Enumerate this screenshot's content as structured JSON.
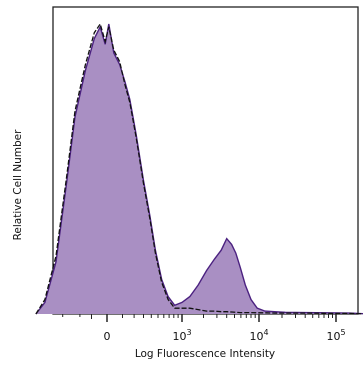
{
  "chart_data": {
    "type": "area",
    "title": "",
    "xlabel": "Log Fluorescence Intensity",
    "ylabel": "Relative Cell Number",
    "x_scale": "logicle",
    "tick_labels": [
      {
        "base": "0",
        "exp": ""
      },
      {
        "base": "10",
        "exp": "3"
      },
      {
        "base": "10",
        "exp": "4"
      },
      {
        "base": "10",
        "exp": "5"
      }
    ],
    "grid": false,
    "legend": "none",
    "colors": {
      "fill": "#a98fc3",
      "outline_unstained": "#111111",
      "outline_stained": "#4b2180",
      "axis": "#222222"
    },
    "series": [
      {
        "style": "filled histogram",
        "x": [
          -900,
          -700,
          -500,
          -350,
          -250,
          -150,
          -80,
          -40,
          -10,
          10,
          40,
          80,
          120,
          160,
          220,
          300,
          380,
          460,
          560,
          680,
          820,
          1000,
          1300,
          1700,
          2200,
          2800,
          3400,
          4000,
          4600,
          5200,
          5900,
          6800,
          8000,
          9500,
          12000,
          16000,
          22000,
          40000,
          80000,
          150000,
          262143
        ],
        "y": [
          0,
          4,
          18,
          45,
          68,
          84,
          95,
          99,
          93,
          100,
          90,
          86,
          80,
          74,
          62,
          46,
          34,
          22,
          12,
          6,
          3,
          4,
          6,
          10,
          15,
          19,
          22,
          26,
          24,
          21,
          16,
          10,
          5,
          2,
          1,
          0.8,
          0.6,
          0.5,
          0.4,
          0.3,
          0
        ]
      },
      {
        "style": "dark outline histogram",
        "x": [
          -900,
          -700,
          -500,
          -350,
          -250,
          -150,
          -80,
          -40,
          -10,
          10,
          40,
          80,
          120,
          160,
          220,
          300,
          380,
          460,
          560,
          680,
          820,
          1000,
          1300,
          1700,
          2200,
          2800,
          3400,
          4000,
          4600,
          5200,
          5900,
          6800,
          8000,
          9500,
          12000,
          16000,
          22000,
          40000,
          80000,
          150000,
          262143
        ],
        "y": [
          0,
          5,
          20,
          47,
          70,
          86,
          97,
          100,
          94,
          99,
          91,
          87,
          79,
          73,
          61,
          45,
          33,
          21,
          11,
          5,
          2,
          2,
          2,
          1.5,
          1,
          1,
          0.8,
          0.8,
          0.7,
          0.6,
          0.5,
          0.5,
          0.5,
          0.4,
          0.4,
          0.3,
          0.3,
          0.3,
          0.2,
          0.2,
          0
        ]
      }
    ]
  }
}
